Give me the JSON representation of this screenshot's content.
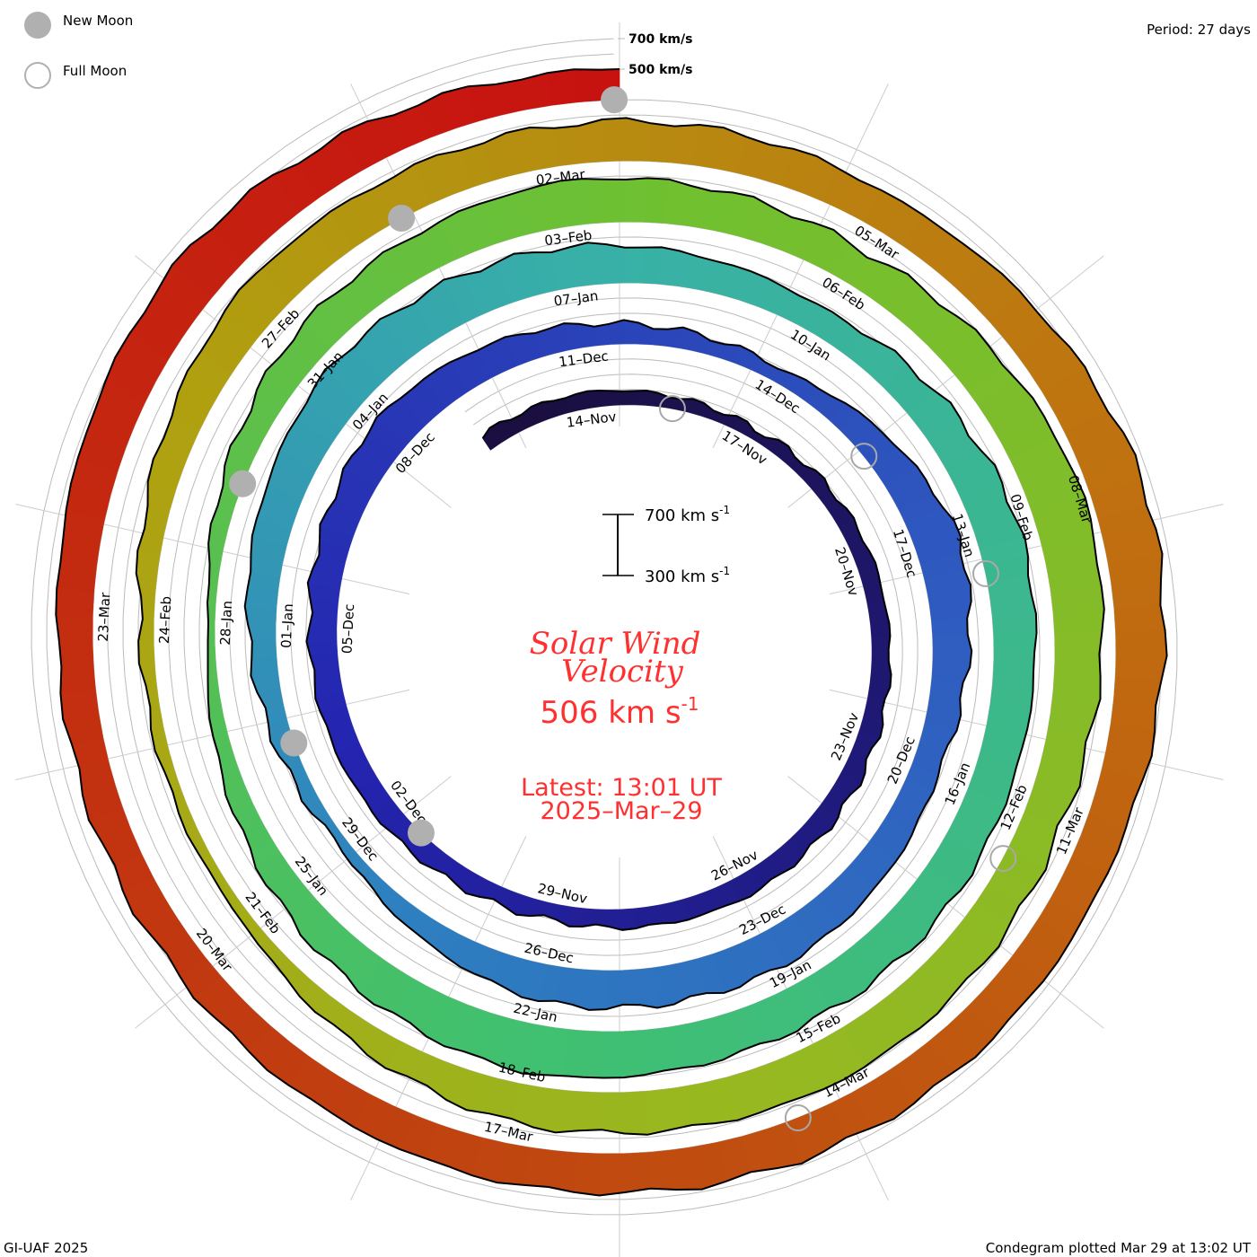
{
  "legend": {
    "new_moon": "New Moon",
    "full_moon": "Full Moon"
  },
  "period": "Period: 27 days",
  "footer": {
    "left": "GI-UAF 2025",
    "right": "Condegram plotted Mar 29 at 13:02 UT"
  },
  "center": {
    "title1": "Solar Wind",
    "title2": "Velocity",
    "value": "506 km s",
    "value_exp": "-1",
    "latest": "Latest: 13:01 UT",
    "date": "2025–Mar–29",
    "scale_top": "700 km s",
    "scale_bottom": "300 km s",
    "scale_exp": "-1"
  },
  "chart_data": {
    "type": "area",
    "subtype": "condegram-spiral",
    "title": "Solar Wind Velocity",
    "period_days": 27,
    "units": "km/s",
    "baseline_kms": 300,
    "latest": {
      "time": "2025-03-29T13:01Z",
      "speed": 506
    },
    "ring_labels": [
      "700 km/s",
      "500 km/s"
    ],
    "scale_bar": [
      300,
      700
    ],
    "samples": [
      {
        "date": "2024-11-12",
        "speed": 400
      },
      {
        "date": "2024-11-14",
        "speed": 410
      },
      {
        "date": "2024-11-17",
        "speed": 360
      },
      {
        "date": "2024-11-20",
        "speed": 420
      },
      {
        "date": "2024-11-23",
        "speed": 420
      },
      {
        "date": "2024-11-26",
        "speed": 450
      },
      {
        "date": "2024-11-29",
        "speed": 400
      },
      {
        "date": "2024-12-02",
        "speed": 450
      },
      {
        "date": "2024-12-05",
        "speed": 475
      },
      {
        "date": "2024-12-08",
        "speed": 560
      },
      {
        "date": "2024-12-11",
        "speed": 450
      },
      {
        "date": "2024-12-14",
        "speed": 390
      },
      {
        "date": "2024-12-17",
        "speed": 600
      },
      {
        "date": "2024-12-20",
        "speed": 475
      },
      {
        "date": "2024-12-23",
        "speed": 560
      },
      {
        "date": "2024-12-26",
        "speed": 535
      },
      {
        "date": "2024-12-29",
        "speed": 360
      },
      {
        "date": "2025-01-01",
        "speed": 475
      },
      {
        "date": "2025-01-04",
        "speed": 620
      },
      {
        "date": "2025-01-07",
        "speed": 560
      },
      {
        "date": "2025-01-10",
        "speed": 475
      },
      {
        "date": "2025-01-13",
        "speed": 590
      },
      {
        "date": "2025-01-16",
        "speed": 560
      },
      {
        "date": "2025-01-19",
        "speed": 560
      },
      {
        "date": "2025-01-22",
        "speed": 620
      },
      {
        "date": "2025-01-25",
        "speed": 500
      },
      {
        "date": "2025-01-28",
        "speed": 330
      },
      {
        "date": "2025-01-31",
        "speed": 535
      },
      {
        "date": "2025-02-03",
        "speed": 590
      },
      {
        "date": "2025-02-06",
        "speed": 535
      },
      {
        "date": "2025-02-09",
        "speed": 650
      },
      {
        "date": "2025-02-12",
        "speed": 560
      },
      {
        "date": "2025-02-15",
        "speed": 590
      },
      {
        "date": "2025-02-18",
        "speed": 560
      },
      {
        "date": "2025-02-21",
        "speed": 360
      },
      {
        "date": "2025-02-24",
        "speed": 390
      },
      {
        "date": "2025-02-27",
        "speed": 590
      },
      {
        "date": "2025-03-02",
        "speed": 560
      },
      {
        "date": "2025-03-05",
        "speed": 535
      },
      {
        "date": "2025-03-08",
        "speed": 650
      },
      {
        "date": "2025-03-11",
        "speed": 560
      },
      {
        "date": "2025-03-14",
        "speed": 560
      },
      {
        "date": "2025-03-17",
        "speed": 560
      },
      {
        "date": "2025-03-20",
        "speed": 500
      },
      {
        "date": "2025-03-23",
        "speed": 535
      },
      {
        "date": "2025-03-26",
        "speed": 620
      },
      {
        "date": "2025-03-29",
        "speed": 506
      }
    ],
    "date_labels": [
      "14-Nov",
      "17-Nov",
      "20-Nov",
      "23-Nov",
      "26-Nov",
      "29-Nov",
      "02-Dec",
      "05-Dec",
      "08-Dec",
      "11-Dec",
      "14-Dec",
      "17-Dec",
      "20-Dec",
      "23-Dec",
      "26-Dec",
      "29-Dec",
      "01-Jan",
      "04-Jan",
      "07-Jan",
      "10-Jan",
      "13-Jan",
      "16-Jan",
      "19-Jan",
      "22-Jan",
      "25-Jan",
      "28-Jan",
      "31-Jan",
      "03-Feb",
      "06-Feb",
      "09-Feb",
      "12-Feb",
      "15-Feb",
      "18-Feb",
      "21-Feb",
      "24-Feb",
      "27-Feb",
      "02-Mar",
      "05-Mar",
      "08-Mar",
      "11-Mar",
      "14-Mar",
      "17-Mar",
      "20-Mar",
      "23-Mar"
    ],
    "new_moons": [
      "2024-12-01",
      "2024-12-30",
      "2025-01-29",
      "2025-02-28",
      "2025-03-29"
    ],
    "full_moons": [
      "2024-11-15",
      "2024-12-15",
      "2025-01-13",
      "2025-02-12",
      "2025-03-14"
    ]
  }
}
